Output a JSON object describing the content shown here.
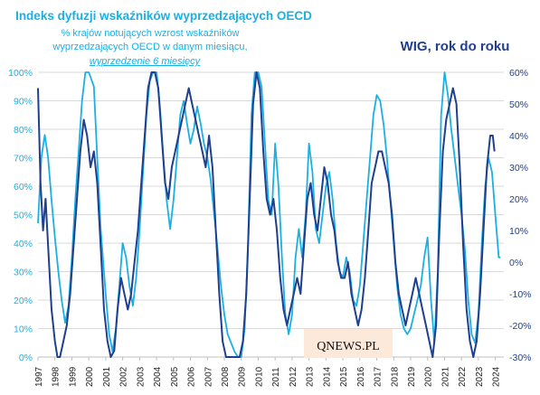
{
  "chart_data": {
    "type": "line",
    "title": "Indeks dyfuzji wskaźników wyprzedzających OECD",
    "subtitle_lines": [
      "% krajów notujących wzrost wskaźników",
      "wyprzedzających OECD w danym miesiącu,"
    ],
    "subtitle_link": "wyprzedzenie 6 miesięcy",
    "right_title": "WIG, rok do roku",
    "watermark": "QNEWS.PL",
    "x_ticks": [
      "1997",
      "1998",
      "1999",
      "2000",
      "2001",
      "2002",
      "2003",
      "2004",
      "2005",
      "2006",
      "2007",
      "2008",
      "2009",
      "2010",
      "2011",
      "2012",
      "2013",
      "2014",
      "2015",
      "2016",
      "2017",
      "2018",
      "2019",
      "2020",
      "2021",
      "2022",
      "2023",
      "2024"
    ],
    "x_range": [
      1997.0,
      2024.5
    ],
    "left_axis": {
      "ticks": [
        "0%",
        "10%",
        "20%",
        "30%",
        "40%",
        "50%",
        "60%",
        "70%",
        "80%",
        "90%",
        "100%"
      ],
      "ylim": [
        0,
        100
      ]
    },
    "right_axis": {
      "ticks": [
        "-30%",
        "-20%",
        "-10%",
        "0%",
        "10%",
        "20%",
        "30%",
        "40%",
        "50%",
        "60%"
      ],
      "ylim": [
        -30,
        60
      ]
    },
    "grid": true,
    "series": [
      {
        "axis": "left",
        "color": "#1ab0e4",
        "points": [
          [
            1997.0,
            47
          ],
          [
            1997.2,
            70
          ],
          [
            1997.4,
            78
          ],
          [
            1997.6,
            70
          ],
          [
            1997.8,
            55
          ],
          [
            1998.0,
            42
          ],
          [
            1998.2,
            30
          ],
          [
            1998.4,
            20
          ],
          [
            1998.6,
            12
          ],
          [
            1998.8,
            18
          ],
          [
            1999.0,
            35
          ],
          [
            1999.2,
            55
          ],
          [
            1999.4,
            72
          ],
          [
            1999.6,
            90
          ],
          [
            1999.8,
            100
          ],
          [
            2000.0,
            100
          ],
          [
            2000.3,
            95
          ],
          [
            2000.5,
            70
          ],
          [
            2000.7,
            45
          ],
          [
            2001.0,
            22
          ],
          [
            2001.2,
            8
          ],
          [
            2001.4,
            2
          ],
          [
            2001.6,
            10
          ],
          [
            2001.8,
            25
          ],
          [
            2002.0,
            40
          ],
          [
            2002.2,
            35
          ],
          [
            2002.4,
            25
          ],
          [
            2002.6,
            18
          ],
          [
            2002.8,
            28
          ],
          [
            2003.0,
            45
          ],
          [
            2003.2,
            65
          ],
          [
            2003.4,
            85
          ],
          [
            2003.6,
            97
          ],
          [
            2003.8,
            100
          ],
          [
            2004.0,
            100
          ],
          [
            2004.2,
            88
          ],
          [
            2004.4,
            70
          ],
          [
            2004.6,
            55
          ],
          [
            2004.8,
            45
          ],
          [
            2005.0,
            55
          ],
          [
            2005.2,
            70
          ],
          [
            2005.4,
            85
          ],
          [
            2005.6,
            90
          ],
          [
            2005.8,
            82
          ],
          [
            2006.0,
            75
          ],
          [
            2006.2,
            80
          ],
          [
            2006.4,
            88
          ],
          [
            2006.6,
            82
          ],
          [
            2006.8,
            75
          ],
          [
            2007.0,
            70
          ],
          [
            2007.2,
            62
          ],
          [
            2007.4,
            50
          ],
          [
            2007.6,
            38
          ],
          [
            2007.8,
            25
          ],
          [
            2008.0,
            15
          ],
          [
            2008.2,
            8
          ],
          [
            2008.4,
            5
          ],
          [
            2008.6,
            2
          ],
          [
            2008.8,
            0
          ],
          [
            2009.0,
            0
          ],
          [
            2009.2,
            10
          ],
          [
            2009.4,
            40
          ],
          [
            2009.6,
            85
          ],
          [
            2009.8,
            100
          ],
          [
            2010.0,
            100
          ],
          [
            2010.2,
            95
          ],
          [
            2010.4,
            75
          ],
          [
            2010.6,
            55
          ],
          [
            2010.8,
            50
          ],
          [
            2011.0,
            75
          ],
          [
            2011.2,
            60
          ],
          [
            2011.4,
            35
          ],
          [
            2011.6,
            15
          ],
          [
            2011.8,
            8
          ],
          [
            2012.0,
            15
          ],
          [
            2012.2,
            35
          ],
          [
            2012.4,
            45
          ],
          [
            2012.6,
            35
          ],
          [
            2012.8,
            50
          ],
          [
            2013.0,
            75
          ],
          [
            2013.2,
            65
          ],
          [
            2013.4,
            45
          ],
          [
            2013.6,
            40
          ],
          [
            2013.8,
            50
          ],
          [
            2014.0,
            60
          ],
          [
            2014.2,
            65
          ],
          [
            2014.4,
            55
          ],
          [
            2014.6,
            40
          ],
          [
            2014.8,
            30
          ],
          [
            2015.0,
            28
          ],
          [
            2015.2,
            35
          ],
          [
            2015.4,
            30
          ],
          [
            2015.6,
            20
          ],
          [
            2015.8,
            18
          ],
          [
            2016.0,
            25
          ],
          [
            2016.2,
            40
          ],
          [
            2016.4,
            55
          ],
          [
            2016.6,
            70
          ],
          [
            2016.8,
            85
          ],
          [
            2017.0,
            92
          ],
          [
            2017.2,
            90
          ],
          [
            2017.4,
            82
          ],
          [
            2017.6,
            70
          ],
          [
            2017.8,
            55
          ],
          [
            2018.0,
            40
          ],
          [
            2018.2,
            25
          ],
          [
            2018.4,
            15
          ],
          [
            2018.6,
            10
          ],
          [
            2018.8,
            8
          ],
          [
            2019.0,
            10
          ],
          [
            2019.2,
            15
          ],
          [
            2019.4,
            20
          ],
          [
            2019.6,
            25
          ],
          [
            2019.8,
            35
          ],
          [
            2020.0,
            42
          ],
          [
            2020.2,
            20
          ],
          [
            2020.4,
            5
          ],
          [
            2020.6,
            30
          ],
          [
            2020.8,
            85
          ],
          [
            2021.0,
            100
          ],
          [
            2021.2,
            92
          ],
          [
            2021.4,
            80
          ],
          [
            2021.6,
            70
          ],
          [
            2021.8,
            60
          ],
          [
            2022.0,
            50
          ],
          [
            2022.2,
            38
          ],
          [
            2022.4,
            20
          ],
          [
            2022.6,
            8
          ],
          [
            2022.8,
            5
          ],
          [
            2023.0,
            15
          ],
          [
            2023.2,
            40
          ],
          [
            2023.4,
            60
          ],
          [
            2023.6,
            70
          ],
          [
            2023.8,
            65
          ],
          [
            2024.0,
            50
          ],
          [
            2024.2,
            35
          ],
          [
            2024.3,
            35
          ]
        ]
      },
      {
        "axis": "right",
        "color": "#1f3f8f",
        "points": [
          [
            1997.0,
            55
          ],
          [
            1997.15,
            25
          ],
          [
            1997.3,
            10
          ],
          [
            1997.45,
            20
          ],
          [
            1997.6,
            5
          ],
          [
            1997.8,
            -15
          ],
          [
            1998.0,
            -25
          ],
          [
            1998.15,
            -30
          ],
          [
            1998.3,
            -30
          ],
          [
            1998.5,
            -25
          ],
          [
            1998.7,
            -20
          ],
          [
            1998.9,
            -10
          ],
          [
            1999.1,
            5
          ],
          [
            1999.3,
            20
          ],
          [
            1999.5,
            35
          ],
          [
            1999.7,
            45
          ],
          [
            1999.9,
            40
          ],
          [
            2000.1,
            30
          ],
          [
            2000.3,
            35
          ],
          [
            2000.5,
            25
          ],
          [
            2000.7,
            5
          ],
          [
            2000.9,
            -15
          ],
          [
            2001.1,
            -25
          ],
          [
            2001.3,
            -30
          ],
          [
            2001.5,
            -28
          ],
          [
            2001.7,
            -15
          ],
          [
            2001.9,
            -5
          ],
          [
            2002.1,
            -10
          ],
          [
            2002.3,
            -15
          ],
          [
            2002.5,
            -10
          ],
          [
            2002.7,
            0
          ],
          [
            2002.9,
            10
          ],
          [
            2003.1,
            25
          ],
          [
            2003.3,
            40
          ],
          [
            2003.5,
            55
          ],
          [
            2003.7,
            60
          ],
          [
            2003.9,
            60
          ],
          [
            2004.1,
            55
          ],
          [
            2004.3,
            40
          ],
          [
            2004.5,
            25
          ],
          [
            2004.7,
            20
          ],
          [
            2004.9,
            30
          ],
          [
            2005.1,
            35
          ],
          [
            2005.3,
            40
          ],
          [
            2005.5,
            45
          ],
          [
            2005.7,
            50
          ],
          [
            2005.9,
            55
          ],
          [
            2006.1,
            50
          ],
          [
            2006.3,
            45
          ],
          [
            2006.5,
            40
          ],
          [
            2006.7,
            35
          ],
          [
            2006.9,
            30
          ],
          [
            2007.1,
            40
          ],
          [
            2007.3,
            30
          ],
          [
            2007.5,
            10
          ],
          [
            2007.7,
            -10
          ],
          [
            2007.9,
            -25
          ],
          [
            2008.1,
            -30
          ],
          [
            2008.3,
            -30
          ],
          [
            2008.5,
            -30
          ],
          [
            2008.7,
            -30
          ],
          [
            2008.9,
            -30
          ],
          [
            2009.1,
            -25
          ],
          [
            2009.3,
            -10
          ],
          [
            2009.5,
            20
          ],
          [
            2009.7,
            50
          ],
          [
            2009.9,
            60
          ],
          [
            2010.1,
            55
          ],
          [
            2010.3,
            35
          ],
          [
            2010.5,
            20
          ],
          [
            2010.7,
            15
          ],
          [
            2010.9,
            20
          ],
          [
            2011.1,
            10
          ],
          [
            2011.3,
            -5
          ],
          [
            2011.5,
            -15
          ],
          [
            2011.7,
            -20
          ],
          [
            2011.9,
            -15
          ],
          [
            2012.1,
            -10
          ],
          [
            2012.3,
            -5
          ],
          [
            2012.5,
            -10
          ],
          [
            2012.7,
            5
          ],
          [
            2012.9,
            20
          ],
          [
            2013.1,
            25
          ],
          [
            2013.3,
            15
          ],
          [
            2013.5,
            10
          ],
          [
            2013.7,
            20
          ],
          [
            2013.9,
            30
          ],
          [
            2014.1,
            25
          ],
          [
            2014.3,
            15
          ],
          [
            2014.5,
            10
          ],
          [
            2014.7,
            0
          ],
          [
            2014.9,
            -5
          ],
          [
            2015.1,
            -5
          ],
          [
            2015.3,
            0
          ],
          [
            2015.5,
            -10
          ],
          [
            2015.7,
            -15
          ],
          [
            2015.9,
            -20
          ],
          [
            2016.1,
            -15
          ],
          [
            2016.3,
            -5
          ],
          [
            2016.5,
            10
          ],
          [
            2016.7,
            25
          ],
          [
            2016.9,
            30
          ],
          [
            2017.1,
            35
          ],
          [
            2017.3,
            35
          ],
          [
            2017.5,
            30
          ],
          [
            2017.7,
            25
          ],
          [
            2017.9,
            15
          ],
          [
            2018.1,
            0
          ],
          [
            2018.3,
            -10
          ],
          [
            2018.5,
            -15
          ],
          [
            2018.7,
            -20
          ],
          [
            2018.9,
            -15
          ],
          [
            2019.1,
            -10
          ],
          [
            2019.3,
            -5
          ],
          [
            2019.5,
            -10
          ],
          [
            2019.7,
            -15
          ],
          [
            2019.9,
            -20
          ],
          [
            2020.1,
            -25
          ],
          [
            2020.3,
            -30
          ],
          [
            2020.5,
            -20
          ],
          [
            2020.7,
            10
          ],
          [
            2020.9,
            35
          ],
          [
            2021.1,
            45
          ],
          [
            2021.3,
            50
          ],
          [
            2021.5,
            55
          ],
          [
            2021.7,
            50
          ],
          [
            2021.9,
            30
          ],
          [
            2022.1,
            5
          ],
          [
            2022.3,
            -15
          ],
          [
            2022.5,
            -25
          ],
          [
            2022.7,
            -30
          ],
          [
            2022.9,
            -25
          ],
          [
            2023.1,
            -10
          ],
          [
            2023.3,
            10
          ],
          [
            2023.5,
            30
          ],
          [
            2023.7,
            40
          ],
          [
            2023.85,
            40
          ],
          [
            2023.95,
            35
          ]
        ]
      }
    ]
  }
}
